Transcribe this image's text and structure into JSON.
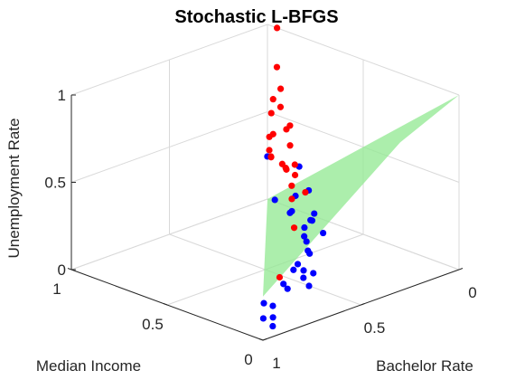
{
  "chart_data": {
    "type": "scatter3d",
    "title": "Stochastic L-BFGS",
    "xlabel": "Bachelor Rate",
    "ylabel": "Median Income",
    "zlabel": "Unemployment Rate",
    "xlim": [
      0,
      1
    ],
    "ylim": [
      0,
      1
    ],
    "zlim": [
      0,
      1
    ],
    "x_ticks": [
      "0",
      "0.5",
      "1"
    ],
    "y_ticks": [
      "0",
      "0.5",
      "1"
    ],
    "z_ticks": [
      "0",
      "0.5",
      "1"
    ],
    "grid": true,
    "colors": {
      "class_a": "#0000ff",
      "class_b": "#ff0000",
      "plane": "#90e890",
      "box": "#d9d9d9",
      "axis": "#262626"
    },
    "series": [
      {
        "color": "#0000ff",
        "points": [
          [
            0.95,
            0.0,
            0.06
          ],
          [
            0.93,
            0.02,
            0.16
          ],
          [
            0.9,
            0.05,
            0.07
          ],
          [
            0.92,
            0.08,
            0.06
          ],
          [
            0.8,
            0.2,
            0.05
          ],
          [
            0.7,
            0.2,
            0.12
          ],
          [
            0.65,
            0.23,
            0.06
          ],
          [
            0.6,
            0.25,
            0.14
          ],
          [
            0.55,
            0.22,
            0.04
          ],
          [
            0.52,
            0.28,
            0.05
          ],
          [
            0.5,
            0.33,
            0.1
          ],
          [
            0.48,
            0.32,
            0.06
          ],
          [
            0.45,
            0.3,
            0.04
          ],
          [
            0.4,
            0.3,
            0.25
          ],
          [
            0.42,
            0.35,
            0.12
          ],
          [
            0.38,
            0.4,
            0.1
          ],
          [
            0.35,
            0.45,
            0.15
          ],
          [
            0.3,
            0.5,
            0.16
          ],
          [
            0.28,
            0.48,
            0.2
          ],
          [
            0.25,
            0.5,
            0.22
          ],
          [
            0.27,
            0.52,
            0.06
          ],
          [
            0.22,
            0.55,
            0.15
          ],
          [
            0.2,
            0.58,
            0.3
          ],
          [
            0.18,
            0.65,
            0.4
          ],
          [
            0.15,
            0.7,
            0.2
          ],
          [
            0.12,
            0.75,
            0.08
          ],
          [
            0.1,
            0.78,
            0.05
          ],
          [
            0.06,
            0.9,
            0.06
          ],
          [
            0.02,
            0.98,
            0.26
          ]
        ]
      },
      {
        "color": "#ff0000",
        "points": [
          [
            0.7,
            0.22,
            0.15
          ],
          [
            0.45,
            0.4,
            0.26
          ],
          [
            0.12,
            0.75,
            0.15
          ],
          [
            0.1,
            0.7,
            0.2
          ],
          [
            0.05,
            0.85,
            0.25
          ],
          [
            0.08,
            0.8,
            0.42
          ],
          [
            0.05,
            0.85,
            0.48
          ],
          [
            0.1,
            0.78,
            0.55
          ],
          [
            0.08,
            0.85,
            0.62
          ],
          [
            0.05,
            0.88,
            0.7
          ],
          [
            0.03,
            0.92,
            0.8
          ],
          [
            0.02,
            0.95,
            0.6
          ],
          [
            0.0,
            0.98,
            0.5
          ],
          [
            0.02,
            0.95,
            0.4
          ],
          [
            0.0,
            0.99,
            0.36
          ],
          [
            0.02,
            0.97,
            0.3
          ],
          [
            0.04,
            0.94,
            0.28
          ],
          [
            0.06,
            0.92,
            0.3
          ],
          [
            0.12,
            0.8,
            0.33
          ],
          [
            0.2,
            0.7,
            0.38
          ],
          [
            0.15,
            0.72,
            0.25
          ],
          [
            0.25,
            0.6,
            0.4
          ],
          [
            0.3,
            0.55,
            0.5
          ],
          [
            0.0,
            0.95,
            1.0
          ]
        ]
      }
    ],
    "plane_corners": [
      [
        0.3,
        0.0,
        0.85
      ],
      [
        1.0,
        0.0,
        0.25
      ],
      [
        0.0,
        1.0,
        0.0
      ],
      [
        0.0,
        0.0,
        1.0
      ]
    ]
  }
}
